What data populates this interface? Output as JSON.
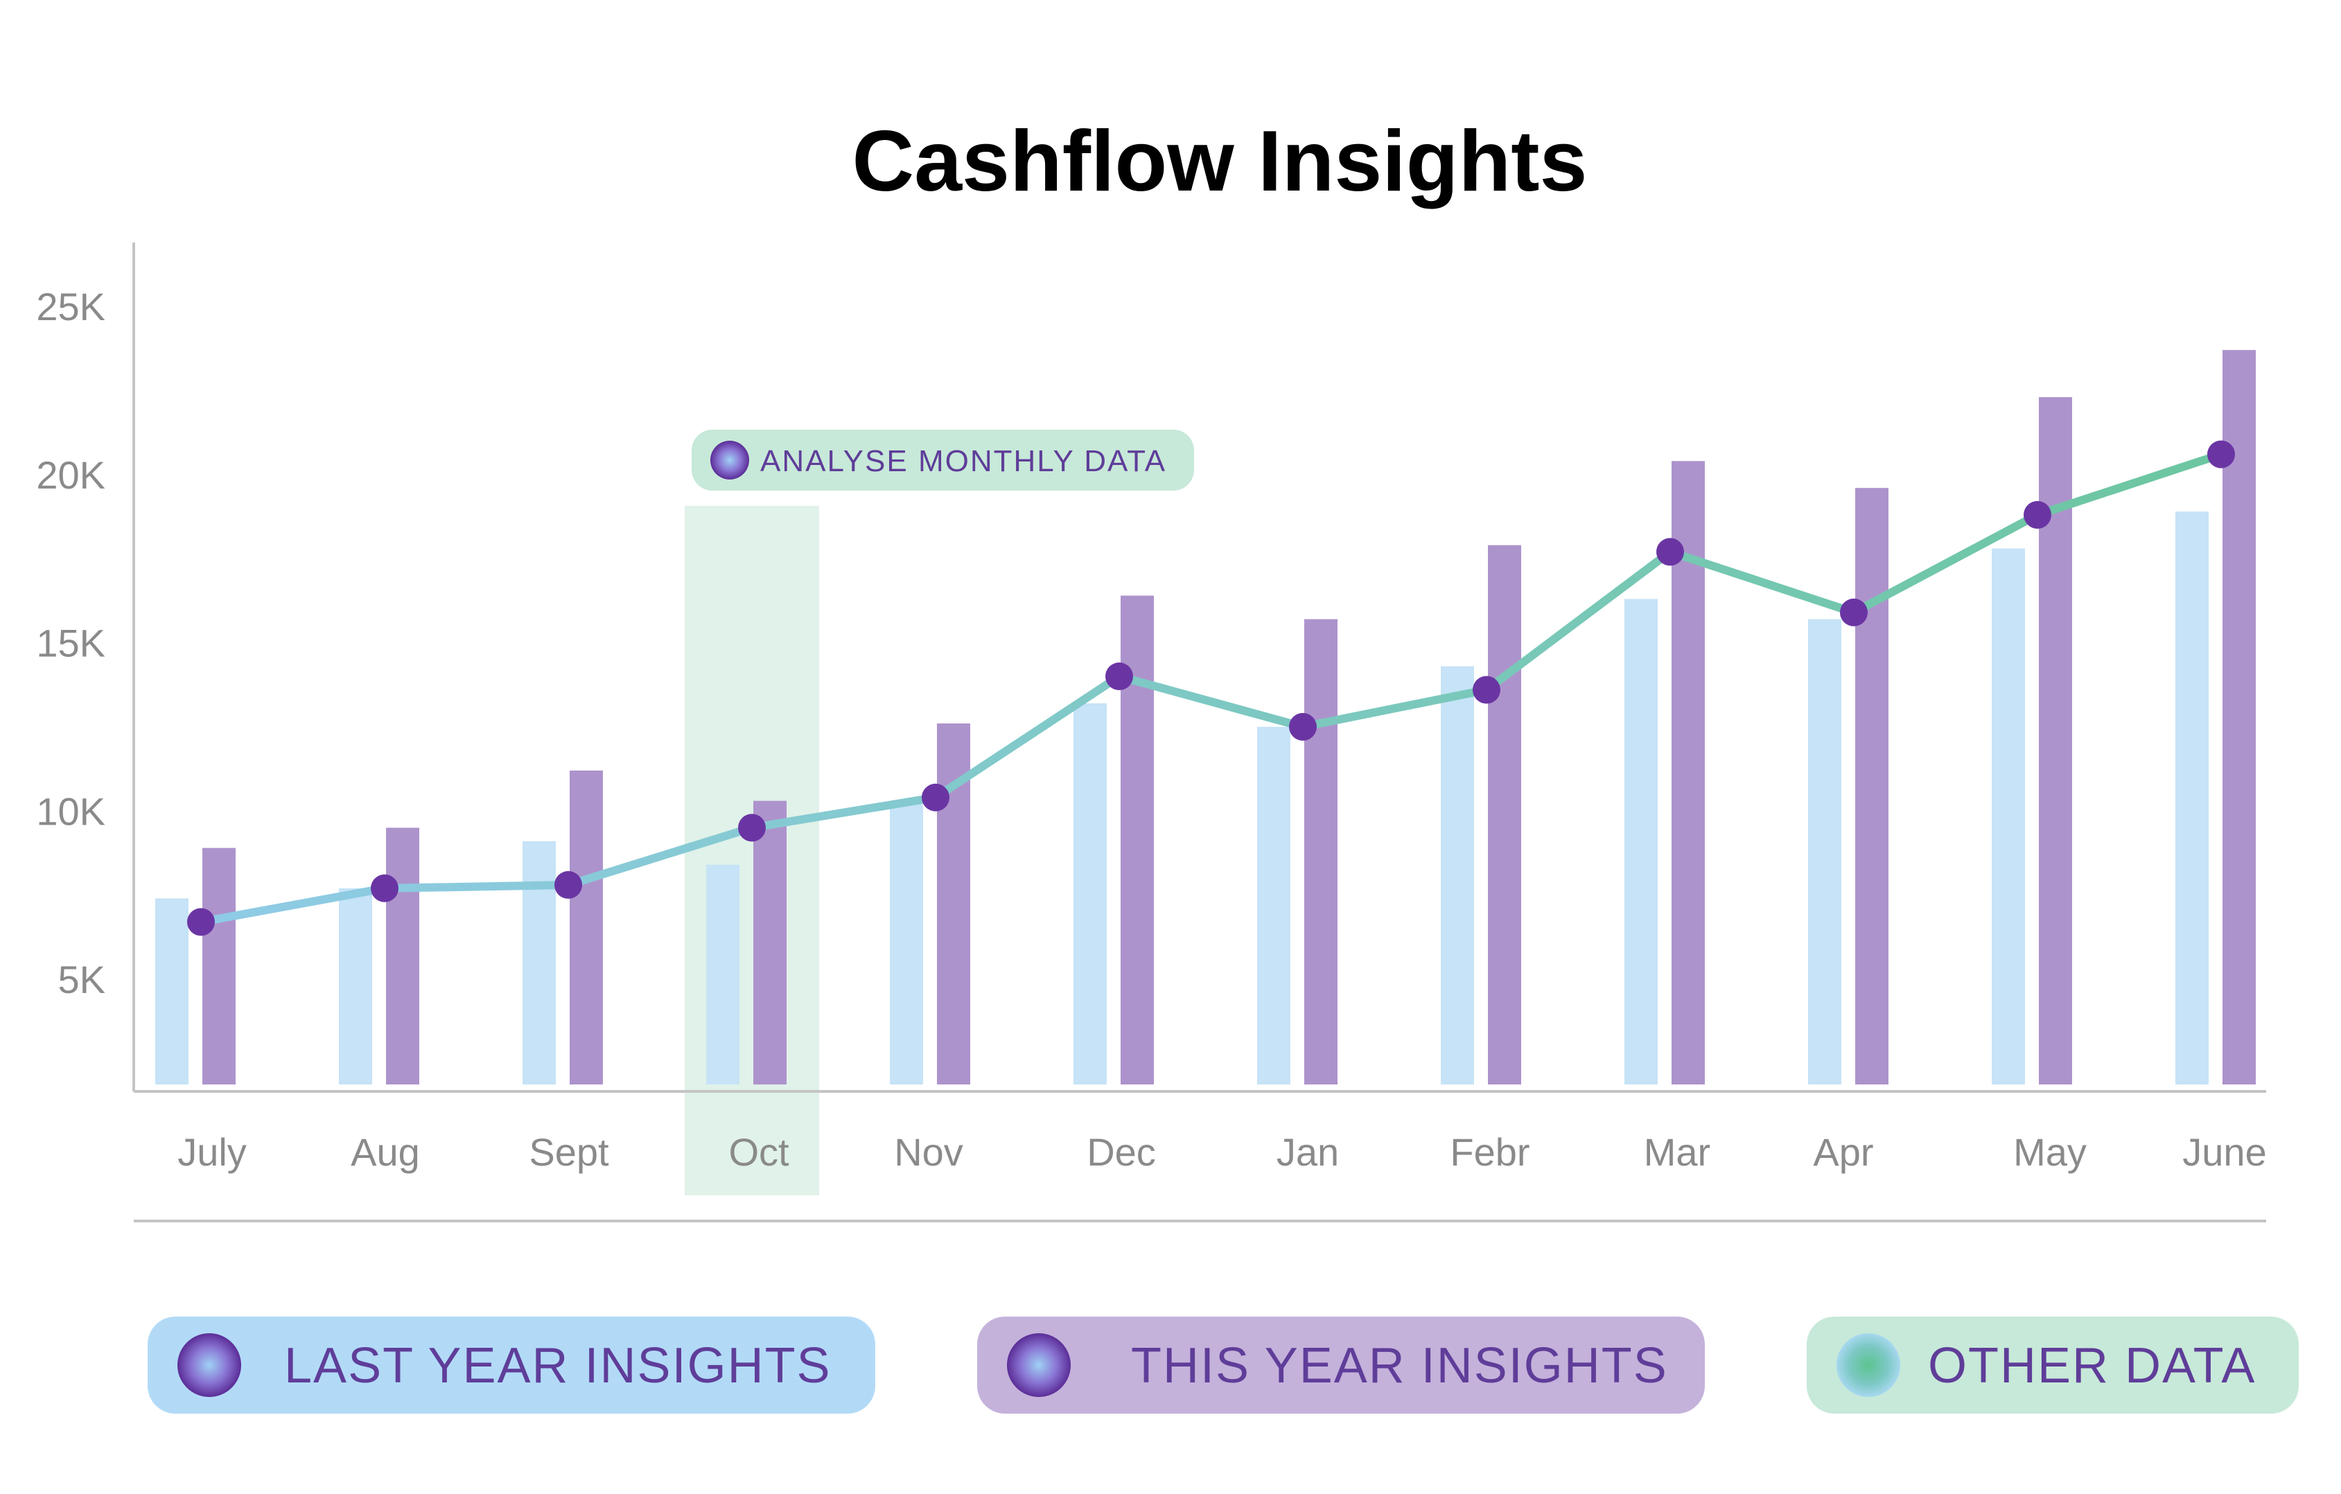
{
  "colors": {
    "last_year_bar": "#c6e3f7",
    "this_year_bar": "#ad93cc",
    "dot": "#6a35a3",
    "line_start": "#8fcbe6",
    "line_end": "#6cc6a0",
    "highlight_band": "#e0f2e9",
    "axis": "#c4c4c4",
    "legend_last_year_bg": "#b2daf7",
    "legend_this_year_bg": "#c4b2db",
    "legend_other_bg": "#c7e9d9",
    "badge_bg": "#c7e9d9",
    "text_purple": "#5f3d99"
  },
  "chart_data": {
    "type": "bar",
    "title": "Cashflow Insights",
    "categories": [
      "July",
      "Aug",
      "Sept",
      "Oct",
      "Nov",
      "Dec",
      "Jan",
      "Febr",
      "Mar",
      "Apr",
      "May",
      "June"
    ],
    "y_ticks": [
      "5K",
      "10K",
      "15K",
      "20K",
      "25K"
    ],
    "ylim": [
      2000,
      26500
    ],
    "series": [
      {
        "name": "LAST YEAR INSIGHTS",
        "kind": "bar",
        "values": [
          7400,
          7700,
          9100,
          8400,
          10200,
          13200,
          12500,
          14300,
          16300,
          15700,
          17800,
          18900
        ]
      },
      {
        "name": "THIS YEAR INSIGHTS",
        "kind": "bar",
        "values": [
          8900,
          9500,
          11200,
          10300,
          12600,
          16400,
          15700,
          17900,
          20400,
          19600,
          22300,
          23700
        ]
      },
      {
        "name": "OTHER DATA",
        "kind": "line",
        "values": [
          6700,
          7700,
          7800,
          9500,
          10400,
          14000,
          12500,
          13600,
          17700,
          15900,
          18800,
          20600
        ]
      }
    ],
    "highlight": {
      "category": "Oct",
      "label": "ANALYSE MONTHLY DATA"
    },
    "grid": false,
    "legend_placement": "bottom"
  }
}
